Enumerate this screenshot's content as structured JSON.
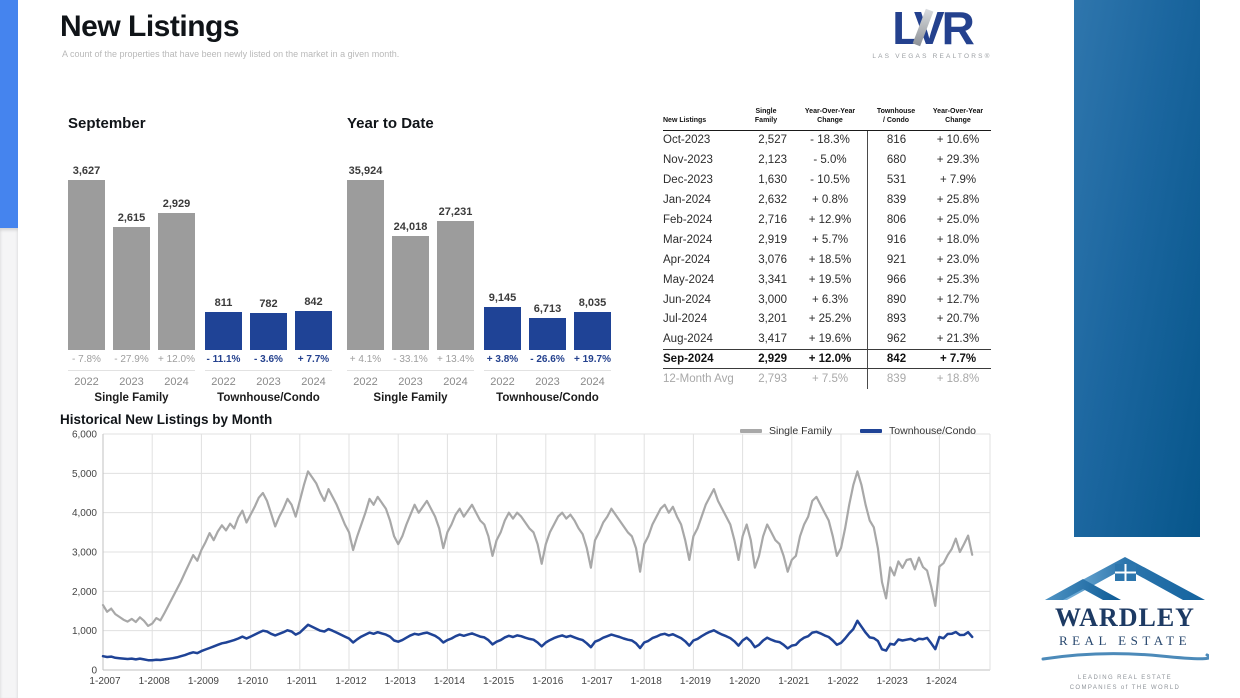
{
  "page": {
    "title": "New Listings",
    "subtitle": "A count of the properties that have been newly listed on the market in a given month."
  },
  "lvr_logo": {
    "text": "LVR",
    "subtext": "LAS VEGAS REALTORS®"
  },
  "colors": {
    "bar_gray": "#9c9c9c",
    "bar_blue": "#1f4396",
    "pct_gray": "#9e9e9e",
    "pct_blue": "#24418e",
    "line_gray": "#a8a8a8",
    "line_blue": "#1f4396",
    "left_strip_blue": "#4584ee",
    "panel_gradient_start": "#2f76ad",
    "panel_gradient_end": "#07568b"
  },
  "chart_data": [
    {
      "id": "september",
      "type": "bar",
      "title": "September",
      "categories": [
        "2022",
        "2023",
        "2024"
      ],
      "groups": [
        {
          "name": "Single Family",
          "color": "#9c9c9c",
          "pct_color": "#9e9e9e",
          "pct_bold": false,
          "values": [
            3627,
            2615,
            2929
          ],
          "labels": [
            "3,627",
            "2,615",
            "2,929"
          ],
          "pct": [
            "- 7.8%",
            "- 27.9%",
            "+ 12.0%"
          ]
        },
        {
          "name": "Townhouse/Condo",
          "color": "#1f4396",
          "pct_color": "#24418e",
          "pct_bold": true,
          "values": [
            811,
            782,
            842
          ],
          "labels": [
            "811",
            "782",
            "842"
          ],
          "pct": [
            "- 11.1%",
            "- 3.6%",
            "+ 7.7%"
          ]
        }
      ]
    },
    {
      "id": "ytd",
      "type": "bar",
      "title": "Year to Date",
      "categories": [
        "2022",
        "2023",
        "2024"
      ],
      "groups": [
        {
          "name": "Single Family",
          "color": "#9c9c9c",
          "pct_color": "#9e9e9e",
          "pct_bold": false,
          "values": [
            35924,
            24018,
            27231
          ],
          "labels": [
            "35,924",
            "24,018",
            "27,231"
          ],
          "pct": [
            "+ 4.1%",
            "- 33.1%",
            "+ 13.4%"
          ]
        },
        {
          "name": "Townhouse/Condo",
          "color": "#1f4396",
          "pct_color": "#24418e",
          "pct_bold": true,
          "values": [
            9145,
            6713,
            8035
          ],
          "labels": [
            "9,145",
            "6,713",
            "8,035"
          ],
          "pct": [
            "+ 3.8%",
            "- 26.6%",
            "+ 19.7%"
          ]
        }
      ]
    },
    {
      "id": "historical",
      "type": "line",
      "title": "Historical New Listings by Month",
      "ylim": [
        0,
        6000
      ],
      "y_ticks": [
        0,
        1000,
        2000,
        3000,
        4000,
        5000,
        6000
      ],
      "y_tick_labels": [
        "0",
        "1,000",
        "2,000",
        "3,000",
        "4,000",
        "5,000",
        "6,000"
      ],
      "x_tick_labels": [
        "1-2007",
        "1-2008",
        "1-2009",
        "1-2010",
        "1-2011",
        "1-2012",
        "1-2013",
        "1-2014",
        "1-2015",
        "1-2016",
        "1-2017",
        "1-2018",
        "1-2019",
        "1-2020",
        "1-2021",
        "1-2022",
        "1-2023",
        "1-2024"
      ],
      "x_start_month": "2007-01",
      "x_end_month": "2024-09",
      "grid": true,
      "legend_position": "top-right",
      "legend": [
        "Single Family",
        "Townhouse/Condo"
      ],
      "series": [
        {
          "name": "Single Family",
          "color": "#a8a8a8",
          "values": [
            1650,
            1480,
            1560,
            1420,
            1350,
            1280,
            1230,
            1300,
            1220,
            1340,
            1250,
            1120,
            1180,
            1320,
            1260,
            1450,
            1650,
            1850,
            2050,
            2250,
            2480,
            2700,
            2920,
            2780,
            3050,
            3250,
            3480,
            3300,
            3520,
            3680,
            3550,
            3720,
            3600,
            3880,
            4050,
            3750,
            3950,
            4150,
            4380,
            4500,
            4300,
            3980,
            3650,
            3900,
            4100,
            4350,
            4200,
            3900,
            4300,
            4700,
            5050,
            4900,
            4750,
            4500,
            4300,
            4600,
            4400,
            4200,
            3950,
            3700,
            3500,
            3050,
            3400,
            3700,
            4000,
            4350,
            4200,
            4400,
            4250,
            4100,
            3800,
            3400,
            3200,
            3400,
            3700,
            3950,
            4200,
            4000,
            4150,
            4300,
            4100,
            3900,
            3600,
            3100,
            3500,
            3700,
            3950,
            4100,
            3900,
            4050,
            4200,
            4000,
            3800,
            3700,
            3400,
            2900,
            3300,
            3500,
            3800,
            4000,
            3850,
            4000,
            3900,
            3750,
            3600,
            3500,
            3200,
            2700,
            3200,
            3500,
            3700,
            3900,
            4000,
            3850,
            3950,
            3800,
            3600,
            3450,
            3100,
            2600,
            3300,
            3500,
            3750,
            3900,
            4100,
            3950,
            3800,
            3650,
            3500,
            3400,
            3100,
            2500,
            3200,
            3400,
            3700,
            3900,
            4100,
            4200,
            4000,
            4150,
            3900,
            3700,
            3300,
            2800,
            3400,
            3600,
            3900,
            4200,
            4400,
            4600,
            4300,
            4100,
            3900,
            3700,
            3300,
            2800,
            3400,
            3700,
            3300,
            2600,
            2900,
            3400,
            3700,
            3500,
            3300,
            3200,
            2900,
            2500,
            2800,
            2900,
            3400,
            3700,
            3900,
            4300,
            4400,
            4200,
            4000,
            3800,
            3400,
            2900,
            3100,
            3600,
            4200,
            4700,
            5050,
            4700,
            4200,
            3800,
            3627,
            3093,
            2235,
            1821,
            2611,
            2406,
            2762,
            2596,
            2796,
            2822,
            2557,
            2857,
            2615,
            2527,
            2123,
            1630,
            2632,
            2716,
            2919,
            3076,
            3341,
            3000,
            3201,
            3417,
            2929
          ]
        },
        {
          "name": "Townhouse/Condo",
          "color": "#1f4396",
          "values": [
            350,
            330,
            340,
            310,
            300,
            290,
            280,
            290,
            270,
            290,
            270,
            250,
            250,
            262,
            255,
            270,
            285,
            300,
            320,
            350,
            380,
            420,
            450,
            430,
            480,
            520,
            560,
            600,
            640,
            680,
            700,
            730,
            760,
            800,
            850,
            800,
            850,
            900,
            950,
            1000,
            980,
            920,
            880,
            920,
            960,
            1010,
            980,
            900,
            950,
            1050,
            1150,
            1100,
            1050,
            1000,
            980,
            1040,
            1000,
            950,
            900,
            850,
            800,
            700,
            780,
            850,
            900,
            950,
            920,
            960,
            930,
            900,
            850,
            750,
            720,
            760,
            820,
            880,
            920,
            900,
            930,
            950,
            910,
            870,
            800,
            700,
            760,
            800,
            860,
            900,
            870,
            900,
            930,
            890,
            850,
            830,
            760,
            650,
            720,
            760,
            830,
            870,
            840,
            880,
            860,
            820,
            790,
            770,
            700,
            600,
            700,
            760,
            810,
            850,
            880,
            840,
            870,
            830,
            790,
            760,
            680,
            580,
            720,
            760,
            820,
            860,
            900,
            870,
            840,
            800,
            770,
            750,
            680,
            560,
            700,
            740,
            810,
            850,
            900,
            920,
            880,
            910,
            860,
            810,
            730,
            620,
            750,
            790,
            860,
            920,
            970,
            1010,
            950,
            900,
            860,
            810,
            730,
            620,
            750,
            820,
            730,
            580,
            640,
            750,
            820,
            770,
            730,
            710,
            640,
            550,
            620,
            640,
            750,
            820,
            860,
            950,
            970,
            930,
            880,
            840,
            750,
            640,
            690,
            800,
            930,
            1040,
            1250,
            1100,
            950,
            830,
            811,
            738,
            526,
            492,
            667,
            645,
            776,
            749,
            771,
            790,
            740,
            793,
            782,
            816,
            680,
            531,
            839,
            806,
            916,
            921,
            966,
            890,
            893,
            962,
            842
          ]
        }
      ]
    }
  ],
  "table": {
    "headers": [
      "New Listings",
      "Single\nFamily",
      "Year-Over-Year\nChange",
      "Townhouse\n/ Condo",
      "Year-Over-Year\nChange"
    ],
    "rows": [
      {
        "month": "Oct-2023",
        "sf": "2,527",
        "sf_yoy": "- 18.3%",
        "tc": "816",
        "tc_yoy": "+ 10.6%",
        "bold": false,
        "muted": false
      },
      {
        "month": "Nov-2023",
        "sf": "2,123",
        "sf_yoy": "- 5.0%",
        "tc": "680",
        "tc_yoy": "+ 29.3%",
        "bold": false,
        "muted": false
      },
      {
        "month": "Dec-2023",
        "sf": "1,630",
        "sf_yoy": "- 10.5%",
        "tc": "531",
        "tc_yoy": "+ 7.9%",
        "bold": false,
        "muted": false
      },
      {
        "month": "Jan-2024",
        "sf": "2,632",
        "sf_yoy": "+ 0.8%",
        "tc": "839",
        "tc_yoy": "+ 25.8%",
        "bold": false,
        "muted": false
      },
      {
        "month": "Feb-2024",
        "sf": "2,716",
        "sf_yoy": "+ 12.9%",
        "tc": "806",
        "tc_yoy": "+ 25.0%",
        "bold": false,
        "muted": false
      },
      {
        "month": "Mar-2024",
        "sf": "2,919",
        "sf_yoy": "+ 5.7%",
        "tc": "916",
        "tc_yoy": "+ 18.0%",
        "bold": false,
        "muted": false
      },
      {
        "month": "Apr-2024",
        "sf": "3,076",
        "sf_yoy": "+ 18.5%",
        "tc": "921",
        "tc_yoy": "+ 23.0%",
        "bold": false,
        "muted": false
      },
      {
        "month": "May-2024",
        "sf": "3,341",
        "sf_yoy": "+ 19.5%",
        "tc": "966",
        "tc_yoy": "+ 25.3%",
        "bold": false,
        "muted": false
      },
      {
        "month": "Jun-2024",
        "sf": "3,000",
        "sf_yoy": "+ 6.3%",
        "tc": "890",
        "tc_yoy": "+ 12.7%",
        "bold": false,
        "muted": false
      },
      {
        "month": "Jul-2024",
        "sf": "3,201",
        "sf_yoy": "+ 25.2%",
        "tc": "893",
        "tc_yoy": "+ 20.7%",
        "bold": false,
        "muted": false
      },
      {
        "month": "Aug-2024",
        "sf": "3,417",
        "sf_yoy": "+ 19.6%",
        "tc": "962",
        "tc_yoy": "+ 21.3%",
        "bold": false,
        "muted": false
      },
      {
        "month": "Sep-2024",
        "sf": "2,929",
        "sf_yoy": "+ 12.0%",
        "tc": "842",
        "tc_yoy": "+ 7.7%",
        "bold": true,
        "muted": false
      },
      {
        "month": "12-Month Avg",
        "sf": "2,793",
        "sf_yoy": "+ 7.5%",
        "tc": "839",
        "tc_yoy": "+ 18.8%",
        "bold": false,
        "muted": true
      }
    ]
  },
  "wardley_logo": {
    "name": "WARDLEY",
    "line2": "REAL ESTATE",
    "tagline": "LEADING REAL ESTATE\nCOMPANIES of THE WORLD"
  }
}
